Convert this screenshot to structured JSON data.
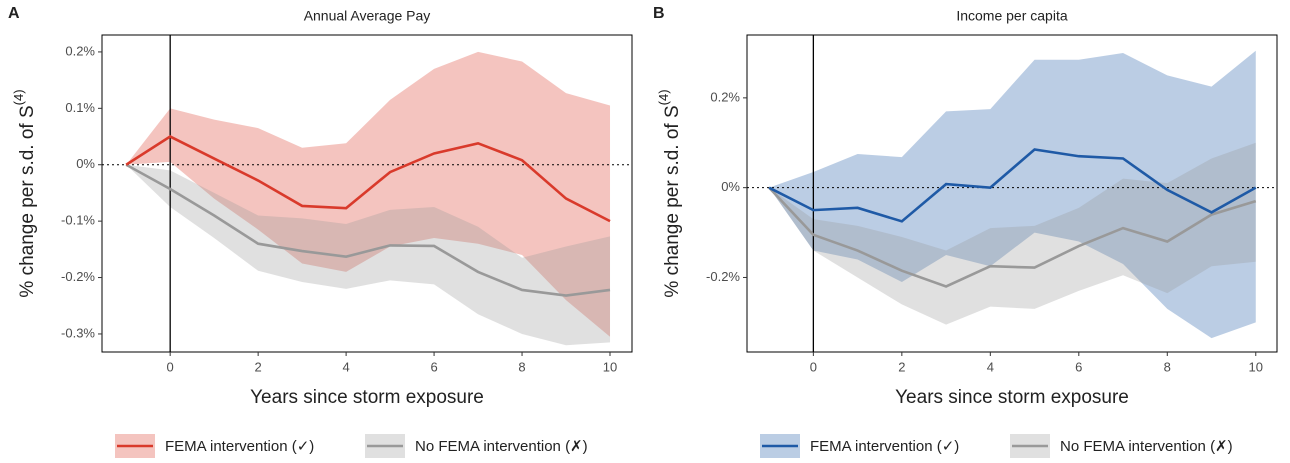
{
  "chart_data": [
    {
      "type": "line",
      "panel_label": "A",
      "title": "Annual Average Pay",
      "xlabel": "Years since storm exposure",
      "ylabel": "% change per s.d. of S",
      "ylabel_sup": "(4)",
      "x": [
        -1,
        0,
        1,
        2,
        3,
        4,
        5,
        6,
        7,
        8,
        9,
        10
      ],
      "xlim": [
        -1.55,
        10.5
      ],
      "xticks": [
        0,
        2,
        4,
        6,
        8,
        10
      ],
      "ylim": [
        -0.332,
        0.23
      ],
      "yticks": [
        {
          "value": -0.3,
          "label": "-0.3%"
        },
        {
          "value": -0.2,
          "label": "-0.2%"
        },
        {
          "value": -0.1,
          "label": "-0.1%"
        },
        {
          "value": 0,
          "label": "0%"
        },
        {
          "value": 0.1,
          "label": "0.1%"
        },
        {
          "value": 0.2,
          "label": "0.2%"
        }
      ],
      "hline": 0,
      "vline": 0,
      "series": [
        {
          "name": "FEMA intervention (✓)",
          "color": "#d93a2b",
          "values": [
            0,
            0.05,
            0.011,
            -0.028,
            -0.073,
            -0.077,
            -0.013,
            0.02,
            0.038,
            0.008,
            -0.06,
            -0.1
          ],
          "upper": [
            0,
            0.1,
            0.08,
            0.065,
            0.03,
            0.038,
            0.115,
            0.17,
            0.2,
            0.183,
            0.127,
            0.105
          ],
          "lower": [
            0,
            0.005,
            -0.06,
            -0.115,
            -0.175,
            -0.19,
            -0.145,
            -0.13,
            -0.14,
            -0.16,
            -0.24,
            -0.305
          ]
        },
        {
          "name": "No FEMA intervention (✗)",
          "color": "#999999",
          "values": [
            0,
            -0.043,
            -0.09,
            -0.14,
            -0.153,
            -0.163,
            -0.143,
            -0.144,
            -0.19,
            -0.222,
            -0.232,
            -0.222
          ],
          "upper": [
            0,
            -0.01,
            -0.05,
            -0.09,
            -0.095,
            -0.105,
            -0.08,
            -0.075,
            -0.11,
            -0.165,
            -0.145,
            -0.127
          ],
          "lower": [
            0,
            -0.075,
            -0.13,
            -0.188,
            -0.208,
            -0.22,
            -0.205,
            -0.212,
            -0.265,
            -0.3,
            -0.32,
            -0.315
          ]
        }
      ]
    },
    {
      "type": "line",
      "panel_label": "B",
      "title": "Income per capita",
      "xlabel": "Years since storm exposure",
      "ylabel": "% change per s.d. of S",
      "ylabel_sup": "(4)",
      "x": [
        -1,
        0,
        1,
        2,
        3,
        4,
        5,
        6,
        7,
        8,
        9,
        10
      ],
      "xlim": [
        -1.5,
        10.48
      ],
      "xticks": [
        0,
        2,
        4,
        6,
        8,
        10
      ],
      "ylim": [
        -0.366,
        0.34
      ],
      "yticks": [
        {
          "value": -0.2,
          "label": "-0.2%"
        },
        {
          "value": 0,
          "label": "0%"
        },
        {
          "value": 0.2,
          "label": "0.2%"
        }
      ],
      "hline": 0,
      "vline": 0,
      "series": [
        {
          "name": "FEMA intervention (✓)",
          "color": "#1f5aa6",
          "values": [
            0,
            -0.05,
            -0.045,
            -0.075,
            0.008,
            0,
            0.085,
            0.07,
            0.065,
            -0.005,
            -0.055,
            0
          ],
          "upper": [
            0,
            0.035,
            0.075,
            0.068,
            0.17,
            0.175,
            0.285,
            0.285,
            0.3,
            0.25,
            0.225,
            0.305
          ],
          "lower": [
            0,
            -0.14,
            -0.16,
            -0.21,
            -0.15,
            -0.175,
            -0.1,
            -0.12,
            -0.17,
            -0.27,
            -0.335,
            -0.3
          ]
        },
        {
          "name": "No FEMA intervention (✗)",
          "color": "#999999",
          "values": [
            0,
            -0.105,
            -0.14,
            -0.185,
            -0.22,
            -0.175,
            -0.178,
            -0.13,
            -0.09,
            -0.12,
            -0.06,
            -0.03
          ],
          "upper": [
            0,
            -0.07,
            -0.085,
            -0.11,
            -0.14,
            -0.09,
            -0.085,
            -0.045,
            0.02,
            0.01,
            0.065,
            0.1
          ],
          "lower": [
            0,
            -0.14,
            -0.2,
            -0.26,
            -0.305,
            -0.265,
            -0.27,
            -0.23,
            -0.195,
            -0.235,
            -0.175,
            -0.165
          ]
        }
      ]
    }
  ]
}
